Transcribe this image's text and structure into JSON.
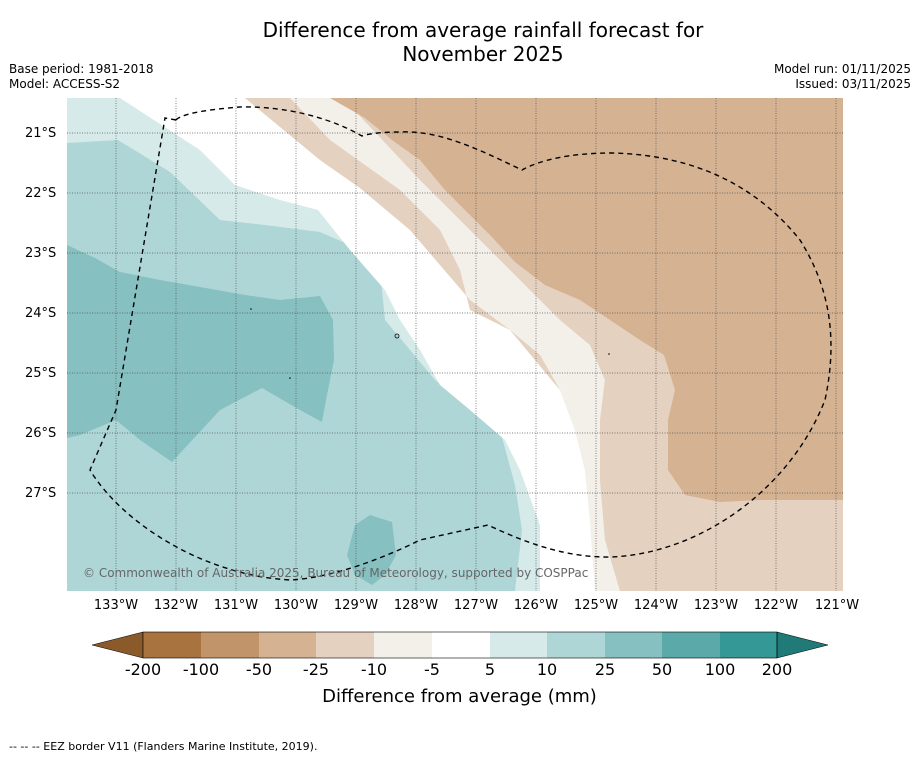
{
  "title": {
    "line1": "Difference from average rainfall forecast for",
    "line2": "November 2025"
  },
  "meta": {
    "base_period": "Base period: 1981-2018",
    "model": "Model: ACCESS-S2",
    "model_run": "Model run: 01/11/2025",
    "issued": "Issued: 03/11/2025"
  },
  "axes": {
    "lat_labels": [
      "21°S",
      "22°S",
      "23°S",
      "24°S",
      "25°S",
      "26°S",
      "27°S"
    ],
    "lon_labels": [
      "133°W",
      "132°W",
      "131°W",
      "130°W",
      "129°W",
      "128°W",
      "127°W",
      "126°W",
      "125°W",
      "124°W",
      "123°W",
      "122°W",
      "121°W"
    ]
  },
  "copyright": "© Commonwealth of Australia 2025, Bureau of Meteorology, supported by COSPPac",
  "colorbar": {
    "title": "Difference from average (mm)",
    "ticks": [
      "-200",
      "-100",
      "-50",
      "-25",
      "-10",
      "-5",
      "5",
      "10",
      "25",
      "50",
      "100",
      "200"
    ],
    "colors": {
      "below_-200": "#8a5a2b",
      "-200_-100": "#a9733f",
      "-100_-50": "#c29469",
      "-50_-25": "#d4b292",
      "-25_-10": "#e4d1bf",
      "-10_-5": "#f3efe9",
      "-5_5": "#ffffff",
      "5_10": "#d6eaea",
      "10_25": "#aed6d6",
      "25_50": "#86c0c0",
      "50_100": "#5ba9a9",
      "100_200": "#339896",
      "above_200": "#1f7a78"
    }
  },
  "footnote": "--  --  -- EEZ border V11 (Flanders Marine Institute, 2019)."
}
